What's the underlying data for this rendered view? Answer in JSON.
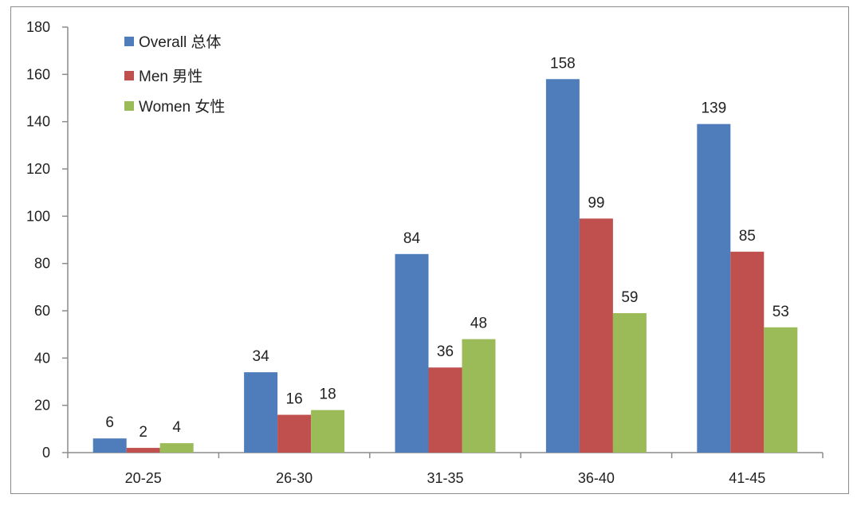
{
  "chart_data": {
    "type": "bar",
    "title": "",
    "xlabel": "",
    "ylabel": "",
    "categories": [
      "20-25",
      "26-30",
      "31-35",
      "36-40",
      "41-45"
    ],
    "series": [
      {
        "name": "Overall 总体",
        "color": "#4f7dbb",
        "values": [
          6,
          34,
          84,
          158,
          139
        ]
      },
      {
        "name": "Men 男性",
        "color": "#c0504d",
        "values": [
          2,
          16,
          36,
          99,
          85
        ]
      },
      {
        "name": "Women 女性",
        "color": "#9bbb59",
        "values": [
          4,
          18,
          48,
          59,
          53
        ]
      }
    ],
    "ylim": [
      0,
      180
    ],
    "yticks": [
      0,
      20,
      40,
      60,
      80,
      100,
      120,
      140,
      160,
      180
    ],
    "grid": false,
    "data_labels": true,
    "legend_position": "top-left (inside plot)"
  }
}
